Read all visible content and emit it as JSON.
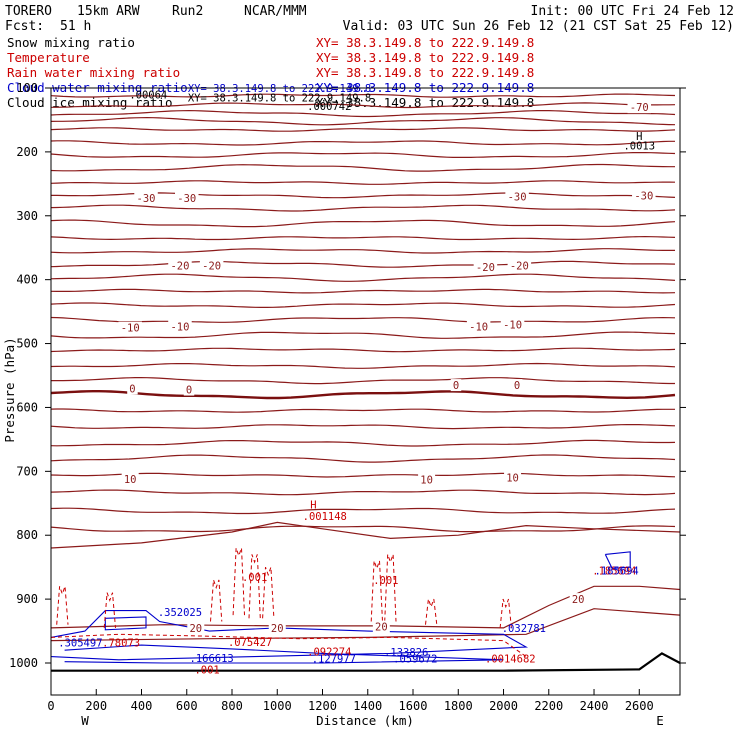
{
  "chart_data": {
    "type": "line",
    "header": {
      "model": "TORERO",
      "resolution": "15km ARW",
      "run": "Run2",
      "org": "NCAR/MMM",
      "init": "Init: 00 UTC Fri 24 Feb 12",
      "fcst_label": "Fcst:",
      "fcst_value": "51 h",
      "valid": "Valid: 03 UTC Sun 26 Feb 12 (21 CST Sat 25 Feb 12)"
    },
    "fields": [
      {
        "name": "Snow mixing ratio",
        "color": "#000000",
        "xy": "XY=  38.3.149.8 to 222.9.149.8"
      },
      {
        "name": "Temperature",
        "color": "#cc0000",
        "xy": "XY=  38.3.149.8 to 222.9.149.8"
      },
      {
        "name": "Rain water mixing ratio",
        "color": "#cc0000",
        "xy": "XY=  38.3.149.8 to 222.9.149.8"
      },
      {
        "name": "Cloud water mixing ratio",
        "color": "#0000cc",
        "xy": "XY=  38.3.149.8 to 222.9.149.8"
      },
      {
        "name": "Cloud ice mixing ratio",
        "color": "#000000",
        "xy": "XY=  38.3.149.8 to 222.9.149.8"
      }
    ],
    "xlabel": "Distance (km)",
    "ylabel": "Pressure (hPa)",
    "xlim": [
      0,
      2780
    ],
    "ylim": [
      100,
      1050
    ],
    "xticks": [
      "0",
      "200",
      "400",
      "600",
      "800",
      "1000",
      "1200",
      "1400",
      "1600",
      "1800",
      "2000",
      "2200",
      "2400",
      "2600"
    ],
    "yticks": [
      "100",
      "200",
      "300",
      "400",
      "500",
      "600",
      "700",
      "800",
      "900",
      "1000"
    ],
    "x_end_labels": {
      "left": "W",
      "right": "E"
    },
    "isotherm_labels": [
      {
        "text": "-70",
        "x": 2600,
        "p": 130
      },
      {
        "text": "-30",
        "x": 420,
        "p": 272
      },
      {
        "text": "-30",
        "x": 600,
        "p": 272
      },
      {
        "text": "-30",
        "x": 2060,
        "p": 270
      },
      {
        "text": "-30",
        "x": 2620,
        "p": 268
      },
      {
        "text": "-20",
        "x": 570,
        "p": 378
      },
      {
        "text": "-20",
        "x": 710,
        "p": 378
      },
      {
        "text": "-20",
        "x": 1920,
        "p": 380
      },
      {
        "text": "-20",
        "x": 2070,
        "p": 378
      },
      {
        "text": "-10",
        "x": 350,
        "p": 475
      },
      {
        "text": "-10",
        "x": 570,
        "p": 473
      },
      {
        "text": "-10",
        "x": 1890,
        "p": 473
      },
      {
        "text": "-10",
        "x": 2040,
        "p": 470
      },
      {
        "text": "0",
        "x": 360,
        "p": 570
      },
      {
        "text": "0",
        "x": 610,
        "p": 572
      },
      {
        "text": "0",
        "x": 1790,
        "p": 565
      },
      {
        "text": "0",
        "x": 2060,
        "p": 565
      },
      {
        "text": "10",
        "x": 350,
        "p": 712
      },
      {
        "text": "10",
        "x": 1660,
        "p": 713
      },
      {
        "text": "10",
        "x": 2040,
        "p": 710
      },
      {
        "text": "20",
        "x": 640,
        "p": 945
      },
      {
        "text": "20",
        "x": 1000,
        "p": 945
      },
      {
        "text": "20",
        "x": 1460,
        "p": 943
      },
      {
        "text": "20",
        "x": 2330,
        "p": 900
      }
    ],
    "max_labels": [
      {
        "text": "H",
        "x": 2600,
        "p": 175,
        "color": "#000000"
      },
      {
        "text": ".0013",
        "x": 2600,
        "p": 190,
        "color": "#000000"
      },
      {
        "text": ".000742",
        "x": 1230,
        "p": 128,
        "color": "#000000"
      },
      {
        "text": ".00064",
        "x": 430,
        "p": 110,
        "color": "#000000"
      },
      {
        "text": "H",
        "x": 1160,
        "p": 752,
        "color": "#cc0000"
      },
      {
        "text": ".001148",
        "x": 1210,
        "p": 770,
        "color": "#cc0000"
      },
      {
        "text": ".001",
        "x": 900,
        "p": 865,
        "color": "#cc0000"
      },
      {
        "text": ".001",
        "x": 1480,
        "p": 870,
        "color": "#cc0000"
      },
      {
        "text": ".001",
        "x": 690,
        "p": 1010,
        "color": "#cc0000"
      },
      {
        "text": ".352025",
        "x": 570,
        "p": 920,
        "color": "#0000cc"
      },
      {
        "text": ".305497",
        "x": 130,
        "p": 968,
        "color": "#0000cc"
      },
      {
        "text": ".78073",
        "x": 310,
        "p": 968,
        "color": "#cc0000"
      },
      {
        "text": ".075427",
        "x": 880,
        "p": 967,
        "color": "#cc0000"
      },
      {
        "text": ".166613",
        "x": 710,
        "p": 992,
        "color": "#0000cc"
      },
      {
        "text": ".092274",
        "x": 1230,
        "p": 982,
        "color": "#cc0000"
      },
      {
        "text": ".127977",
        "x": 1250,
        "p": 993,
        "color": "#0000cc"
      },
      {
        "text": ".133826",
        "x": 1570,
        "p": 983,
        "color": "#0000cc"
      },
      {
        "text": ".059672",
        "x": 1610,
        "p": 993,
        "color": "#0000cc"
      },
      {
        "text": ".032781",
        "x": 2090,
        "p": 945,
        "color": "#0000cc"
      },
      {
        "text": ".0014682",
        "x": 2030,
        "p": 993,
        "color": "#cc0000"
      },
      {
        "text": ".185694",
        "x": 2490,
        "p": 855,
        "color": "#cc0000"
      },
      {
        "text": ".185694",
        "x": 2500,
        "p": 855,
        "color": "#0000cc"
      }
    ],
    "overlay_text": [
      {
        "text": "XY=  38.3.149.8 to 222.9.149.8",
        "x": 1010,
        "p": 100,
        "color": "#0000cc"
      },
      {
        "text": "XY=  38.3.149.8 to 222.9.149.8",
        "x": 1010,
        "p": 115,
        "color": "#000000"
      }
    ]
  }
}
